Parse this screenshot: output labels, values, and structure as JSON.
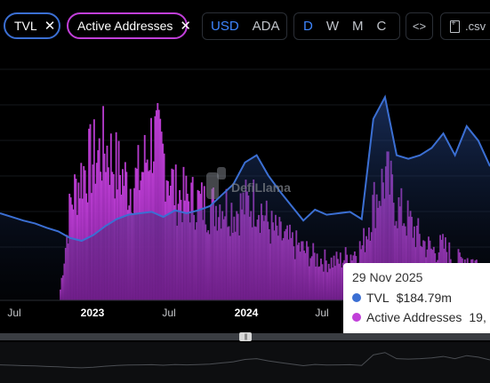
{
  "toolbar": {
    "metric_chips": [
      {
        "label": "TVL",
        "color": "#3b6fd3"
      },
      {
        "label": "Active Addresses",
        "color": "#c13fd9"
      }
    ],
    "currency_options": [
      "USD",
      "ADA"
    ],
    "currency_selected": "USD",
    "period_options": [
      "D",
      "W",
      "M",
      "C"
    ],
    "period_selected": "D",
    "embed_label": "<>",
    "csv_label": ".csv"
  },
  "watermark": "DefiLlama",
  "tooltip": {
    "date": "29 Nov 2025",
    "rows": [
      {
        "name": "TVL",
        "value": "$184.79m",
        "color": "#3b6fd3"
      },
      {
        "name": "Active Addresses",
        "value": "19,",
        "color": "#c13fd9"
      }
    ]
  },
  "chart_data": {
    "type": "line",
    "x_tick_labels": [
      "Jul",
      "2023",
      "Jul",
      "2024",
      "Jul"
    ],
    "bold_ticks": [
      "2023",
      "2024"
    ],
    "series": [
      {
        "name": "TVL",
        "color": "#3b6fd3",
        "x": [
          "2022-05",
          "2022-06",
          "2022-07",
          "2022-08",
          "2022-09",
          "2022-10",
          "2022-11",
          "2022-12",
          "2023-01",
          "2023-02",
          "2023-03",
          "2023-04",
          "2023-05",
          "2023-06",
          "2023-07",
          "2023-08",
          "2023-09",
          "2023-10",
          "2023-11",
          "2023-12",
          "2024-01",
          "2024-02",
          "2024-03",
          "2024-04",
          "2024-05",
          "2024-06",
          "2024-07",
          "2024-08",
          "2024-09",
          "2024-10",
          "2024-11",
          "2024-12",
          "2025-01",
          "2025-02",
          "2025-03",
          "2025-04",
          "2025-05",
          "2025-06",
          "2025-07",
          "2025-08",
          "2025-09",
          "2025-10",
          "2025-11"
        ],
        "values": [
          120,
          115,
          110,
          106,
          100,
          95,
          86,
          82,
          90,
          102,
          112,
          118,
          120,
          122,
          115,
          124,
          120,
          124,
          130,
          145,
          160,
          190,
          200,
          172,
          150,
          130,
          110,
          125,
          118,
          120,
          122,
          112,
          250,
          280,
          200,
          195,
          200,
          210,
          230,
          200,
          240,
          220,
          184.79
        ]
      },
      {
        "name": "Active Addresses",
        "color": "#c13fd9",
        "x": [
          "2022-05",
          "2022-06",
          "2022-07",
          "2022-08",
          "2022-09",
          "2022-10",
          "2022-11",
          "2022-12",
          "2023-01",
          "2023-02",
          "2023-03",
          "2023-04",
          "2023-05",
          "2023-06",
          "2023-07",
          "2023-08",
          "2023-09",
          "2023-10",
          "2023-11",
          "2023-12",
          "2024-01",
          "2024-02",
          "2024-03",
          "2024-04",
          "2024-05",
          "2024-06",
          "2024-07",
          "2024-08",
          "2024-09",
          "2024-10",
          "2024-11",
          "2024-12",
          "2025-01",
          "2025-02",
          "2025-03",
          "2025-04",
          "2025-05",
          "2025-06",
          "2025-07",
          "2025-08",
          "2025-09",
          "2025-10",
          "2025-11"
        ],
        "values": [
          0,
          0,
          0,
          0,
          0,
          0,
          55,
          72,
          80,
          86,
          74,
          64,
          70,
          92,
          80,
          60,
          57,
          55,
          52,
          55,
          50,
          54,
          56,
          42,
          36,
          32,
          28,
          24,
          22,
          22,
          26,
          30,
          55,
          70,
          52,
          44,
          34,
          28,
          30,
          22,
          24,
          20,
          19
        ]
      }
    ]
  }
}
